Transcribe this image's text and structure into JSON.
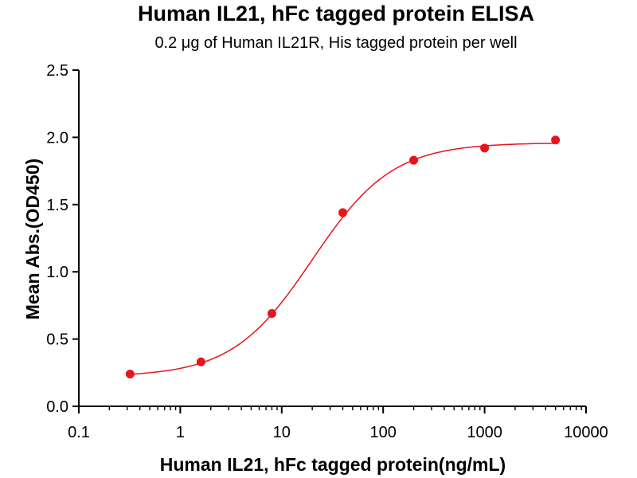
{
  "chart_data": {
    "type": "scatter",
    "title": "Human IL21, hFc tagged protein ELISA",
    "subtitle_prefix": "0.2 ",
    "subtitle_unit": "μg",
    "subtitle_suffix": " of Human IL21R, His tagged protein per well",
    "xlabel": "Human IL21, hFc tagged protein(ng/mL)",
    "ylabel": "Mean Abs.(OD450)",
    "xscale": "log",
    "xlim": [
      0.1,
      10000
    ],
    "ylim": [
      0,
      2.5
    ],
    "xticks": [
      0.1,
      1,
      10,
      100,
      1000,
      10000
    ],
    "xtick_labels": [
      "0.1",
      "1",
      "10",
      "100",
      "1000",
      "10000"
    ],
    "yticks": [
      0,
      0.5,
      1.0,
      1.5,
      2.0,
      2.5
    ],
    "ytick_labels": [
      "0.0",
      "0.5",
      "1.0",
      "1.5",
      "2.0",
      "2.5"
    ],
    "grid": false,
    "legend": "none",
    "color": "#e8141c",
    "series": [
      {
        "x": [
          0.32,
          1.6,
          8,
          40,
          200,
          1000,
          5000
        ],
        "y": [
          0.24,
          0.33,
          0.69,
          1.44,
          1.83,
          1.92,
          1.98
        ],
        "fit": "4PL"
      }
    ]
  }
}
